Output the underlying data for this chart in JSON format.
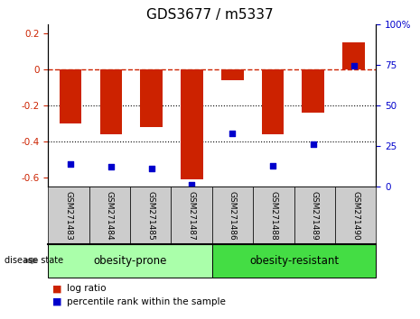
{
  "title": "GDS3677 / m5337",
  "samples": [
    "GSM271483",
    "GSM271484",
    "GSM271485",
    "GSM271487",
    "GSM271486",
    "GSM271488",
    "GSM271489",
    "GSM271490"
  ],
  "log_ratio": [
    -0.3,
    -0.36,
    -0.32,
    -0.61,
    -0.06,
    -0.36,
    -0.24,
    0.15
  ],
  "percentile_rank": [
    14,
    12,
    11,
    1,
    33,
    13,
    26,
    74
  ],
  "groups": [
    {
      "label": "obesity-prone",
      "start": 0,
      "end": 4,
      "color": "#aaffaa"
    },
    {
      "label": "obesity-resistant",
      "start": 4,
      "end": 8,
      "color": "#44dd44"
    }
  ],
  "ylim_left": [
    -0.65,
    0.25
  ],
  "ylim_right": [
    0,
    100
  ],
  "bar_color": "#cc2200",
  "dot_color": "#0000cc",
  "dashed_line_color": "#cc2200",
  "dotted_line_color": "#000000",
  "label_box_color": "#cccccc",
  "title_fontsize": 11,
  "tick_fontsize": 7.5,
  "label_fontsize": 6.5,
  "group_label_fontsize": 8.5,
  "legend_fontsize": 7.5
}
